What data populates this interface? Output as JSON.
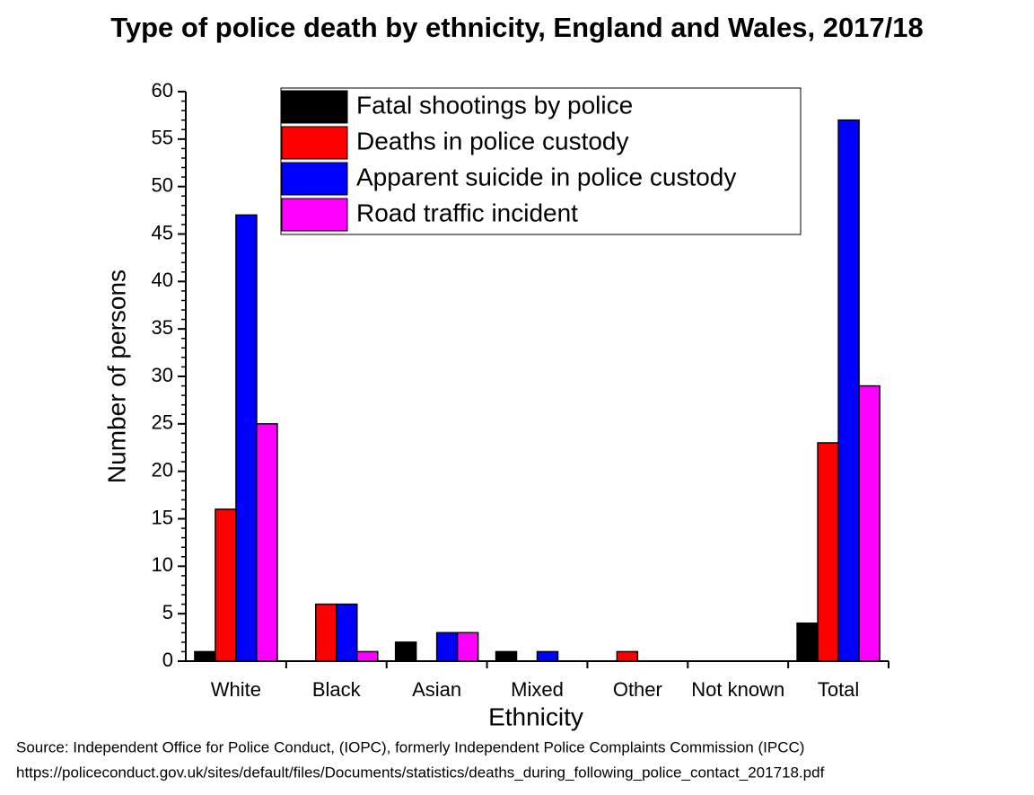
{
  "chart_data": {
    "type": "bar",
    "title": "Type of police death by ethnicity, England and Wales, 2017/18",
    "x_label": "Ethnicity",
    "y_label": "Number of persons",
    "categories": [
      "White",
      "Black",
      "Asian",
      "Mixed",
      "Other",
      "Not known",
      "Total"
    ],
    "series": [
      {
        "name": "Fatal shootings by police",
        "color": "#000000",
        "values": [
          1,
          0,
          2,
          1,
          0,
          0,
          4
        ]
      },
      {
        "name": "Deaths in police custody",
        "color": "#ff0000",
        "values": [
          16,
          6,
          0,
          0,
          1,
          0,
          23
        ]
      },
      {
        "name": "Apparent suicide in police custody",
        "color": "#0000ff",
        "values": [
          47,
          6,
          3,
          1,
          0,
          0,
          57
        ]
      },
      {
        "name": "Road traffic incident",
        "color": "#ff00ff",
        "values": [
          25,
          1,
          3,
          0,
          0,
          0,
          29
        ]
      }
    ],
    "ylim": [
      0,
      60
    ],
    "yticks": [
      0,
      5,
      10,
      15,
      20,
      25,
      30,
      35,
      40,
      45,
      50,
      55,
      60
    ],
    "grid": false,
    "legend": "top",
    "source": [
      "Source: Independent Office for Police Conduct, (IOPC), formerly Independent Police Complaints Commission (IPCC)",
      "https://policeconduct.gov.uk/sites/default/files/Documents/statistics/deaths_during_following_police_contact_201718.pdf"
    ]
  }
}
